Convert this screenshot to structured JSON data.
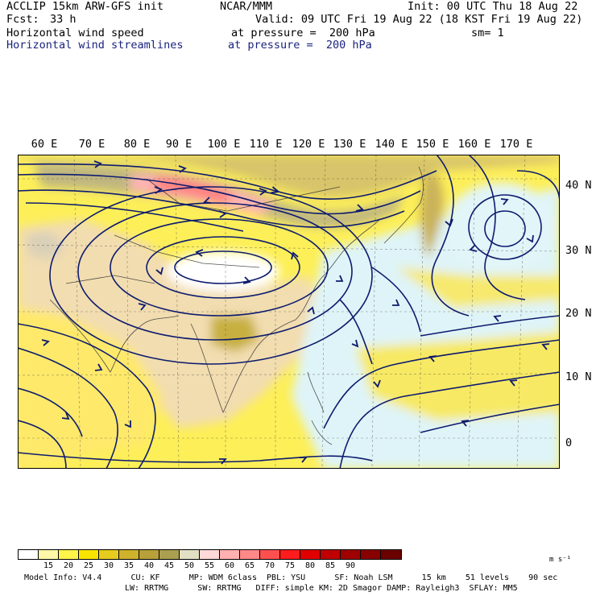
{
  "header": {
    "model": "ACCLIP 15km ARW-GFS init",
    "org": "NCAR/MMM",
    "init": "Init: 00 UTC Thu 18 Aug 22",
    "fcst_label": "Fcst:",
    "fcst_value": "33 h",
    "valid": "Valid: 09 UTC Fri 19 Aug 22 (18 KST Fri 19 Aug 22)",
    "field1": "Horizontal wind speed",
    "field1_level": "at pressure =  200 hPa",
    "smoothing": "sm= 1",
    "field2": "Horizontal wind streamlines",
    "field2_level": "at pressure =  200 hPa"
  },
  "axes": {
    "lon_labels": [
      "60 E",
      "70 E",
      "80 E",
      "90 E",
      "100 E",
      "110 E",
      "120 E",
      "130 E",
      "140 E",
      "150 E",
      "160 E",
      "170 E"
    ],
    "lat_labels": [
      "40 N",
      "30 N",
      "20 N",
      "10 N",
      "0"
    ]
  },
  "colorbar": {
    "ticks": [
      "15",
      "20",
      "25",
      "30",
      "35",
      "40",
      "45",
      "50",
      "55",
      "60",
      "65",
      "70",
      "75",
      "80",
      "85",
      "90"
    ],
    "unit": "m s⁻¹",
    "colors": [
      "#ffffff",
      "#fff8a8",
      "#fff44a",
      "#f8e400",
      "#e6cc1e",
      "#cfb22c",
      "#b8a03a",
      "#aaa050",
      "#e2e0c4",
      "#ffd8d8",
      "#ffb0b0",
      "#ff8888",
      "#ff5050",
      "#ff1c1c",
      "#e00000",
      "#c00000",
      "#a00000",
      "#880000",
      "#6a0000"
    ]
  },
  "footer": {
    "line1": "Model Info: V4.4      CU: KF      MP: WDM 6class  PBL: YSU      SF: Noah LSM      15 km    51 levels    90 sec",
    "line2": "LW: RRTMG      SW: RRTMG   DIFF: simple KM: 2D Smagor DAMP: Rayleigh3  SFLAY: MM5"
  }
}
